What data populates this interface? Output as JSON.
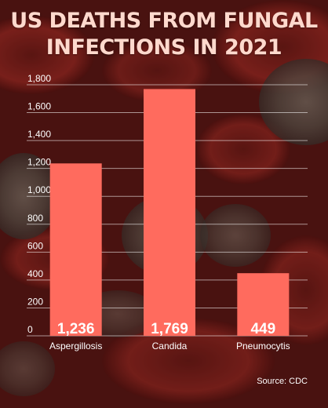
{
  "colors": {
    "bar": "#ff6b5e",
    "gridline": "#ffffff",
    "text": "#ffffff",
    "title": "#ffd9cd"
  },
  "title_lines": [
    "US DEATHS FROM FUNGAL",
    "INFECTIONS IN 2021"
  ],
  "source": "Source: CDC",
  "chart_data": {
    "type": "bar",
    "title": "US DEATHS FROM FUNGAL INFECTIONS IN 2021",
    "categories": [
      "Aspergillosis",
      "Candida",
      "Pneumocytis"
    ],
    "values": [
      1236,
      1769,
      449
    ],
    "value_labels": [
      "1,236",
      "1,769",
      "449"
    ],
    "yticks": [
      0,
      200,
      400,
      600,
      800,
      1000,
      1200,
      1400,
      1600,
      1800
    ],
    "ytick_labels": [
      "0",
      "200",
      "400",
      "600",
      "800",
      "1,000",
      "1,200",
      "1,400",
      "1,600",
      "1,800"
    ],
    "ylim": [
      0,
      1800
    ],
    "grid": true,
    "legend": "none"
  }
}
